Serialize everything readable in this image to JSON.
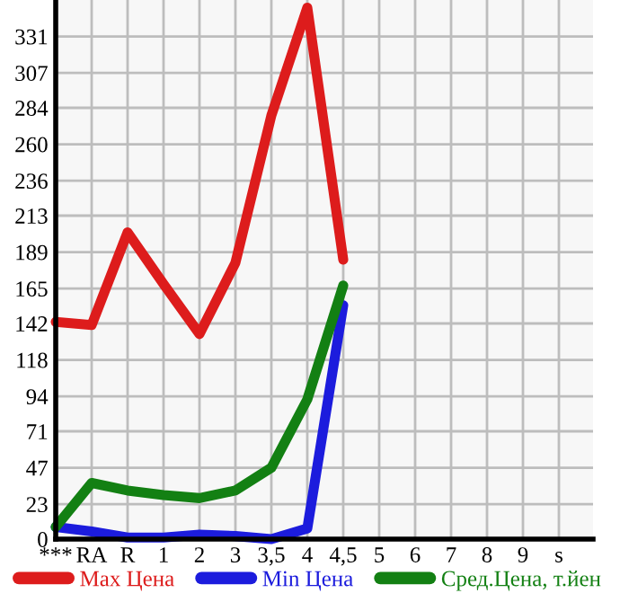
{
  "chart_data": {
    "type": "line",
    "categories": [
      "***",
      "RA",
      "R",
      "1",
      "2",
      "3",
      "3,5",
      "4",
      "4,5",
      "5",
      "6",
      "7",
      "8",
      "9",
      "s"
    ],
    "series": [
      {
        "name": "Max Цена",
        "color": "#dd1c1c",
        "values": [
          143,
          141,
          202,
          168,
          135,
          182,
          279,
          350,
          184,
          null,
          null,
          null,
          null,
          null,
          null
        ]
      },
      {
        "name": "Min Цена",
        "color": "#1c1cdd",
        "values": [
          8,
          5,
          1,
          1,
          3,
          2,
          0,
          7,
          154,
          null,
          null,
          null,
          null,
          null,
          null
        ]
      },
      {
        "name": "Сред.Цена, т.йен",
        "color": "#138013",
        "values": [
          8,
          37,
          32,
          29,
          27,
          32,
          47,
          92,
          167,
          null,
          null,
          null,
          null,
          null,
          null
        ]
      }
    ],
    "ylim": [
      0,
      355
    ],
    "yticks": [
      0,
      23,
      47,
      71,
      94,
      118,
      142,
      165,
      189,
      213,
      236,
      260,
      284,
      307,
      331
    ],
    "grid": true,
    "legend": "bottom",
    "marker": "none",
    "line_style": "solid"
  }
}
